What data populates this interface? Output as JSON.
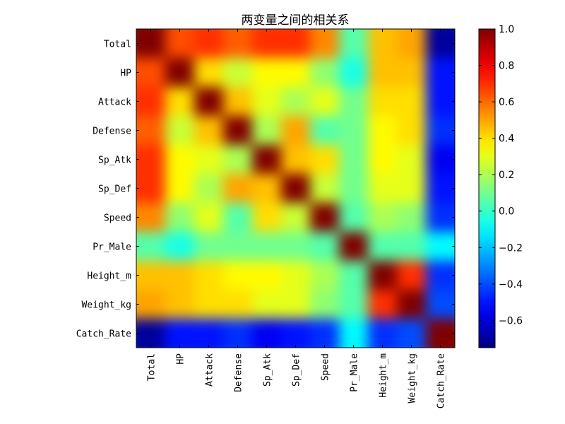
{
  "chart_data": {
    "type": "heatmap",
    "title": "两变量之间的相关系",
    "variables": [
      "Total",
      "HP",
      "Attack",
      "Defense",
      "Sp_Atk",
      "Sp_Def",
      "Speed",
      "Pr_Male",
      "Height_m",
      "Weight_kg",
      "Catch_Rate"
    ],
    "matrix": [
      [
        1.0,
        0.65,
        0.7,
        0.62,
        0.7,
        0.7,
        0.55,
        0.05,
        0.45,
        0.5,
        -0.7
      ],
      [
        0.65,
        1.0,
        0.4,
        0.25,
        0.35,
        0.35,
        0.15,
        -0.05,
        0.45,
        0.45,
        -0.5
      ],
      [
        0.7,
        0.4,
        1.0,
        0.45,
        0.3,
        0.2,
        0.3,
        0.1,
        0.4,
        0.4,
        -0.5
      ],
      [
        0.62,
        0.25,
        0.45,
        1.0,
        0.2,
        0.5,
        0.05,
        0.1,
        0.35,
        0.4,
        -0.45
      ],
      [
        0.7,
        0.35,
        0.3,
        0.2,
        1.0,
        0.45,
        0.4,
        0.1,
        0.35,
        0.3,
        -0.55
      ],
      [
        0.7,
        0.35,
        0.2,
        0.5,
        0.45,
        1.0,
        0.25,
        0.1,
        0.3,
        0.3,
        -0.5
      ],
      [
        0.55,
        0.15,
        0.3,
        0.05,
        0.4,
        0.25,
        1.0,
        0.05,
        0.2,
        0.15,
        -0.45
      ],
      [
        0.05,
        -0.05,
        0.1,
        0.1,
        0.1,
        0.1,
        0.05,
        1.0,
        0.05,
        0.05,
        -0.1
      ],
      [
        0.45,
        0.45,
        0.4,
        0.35,
        0.35,
        0.3,
        0.2,
        0.05,
        1.0,
        0.7,
        -0.45
      ],
      [
        0.5,
        0.45,
        0.4,
        0.4,
        0.3,
        0.3,
        0.15,
        0.05,
        0.7,
        1.0,
        -0.4
      ],
      [
        -0.7,
        -0.5,
        -0.5,
        -0.45,
        -0.55,
        -0.5,
        -0.45,
        -0.1,
        -0.45,
        -0.4,
        1.0
      ]
    ],
    "colorbar": {
      "colormap": "jet",
      "range": [
        -0.75,
        1.0
      ],
      "ticks": [
        1.0,
        0.8,
        0.6,
        0.4,
        0.2,
        0.0,
        -0.2,
        -0.4,
        -0.6
      ],
      "tick_labels": [
        "1.0",
        "0.8",
        "0.6",
        "0.4",
        "0.2",
        "0.0",
        "−0.2",
        "−0.4",
        "−0.6"
      ]
    },
    "interpolation": "bicubic",
    "xlabel": "",
    "ylabel": "",
    "grid": false,
    "legend": "none"
  }
}
